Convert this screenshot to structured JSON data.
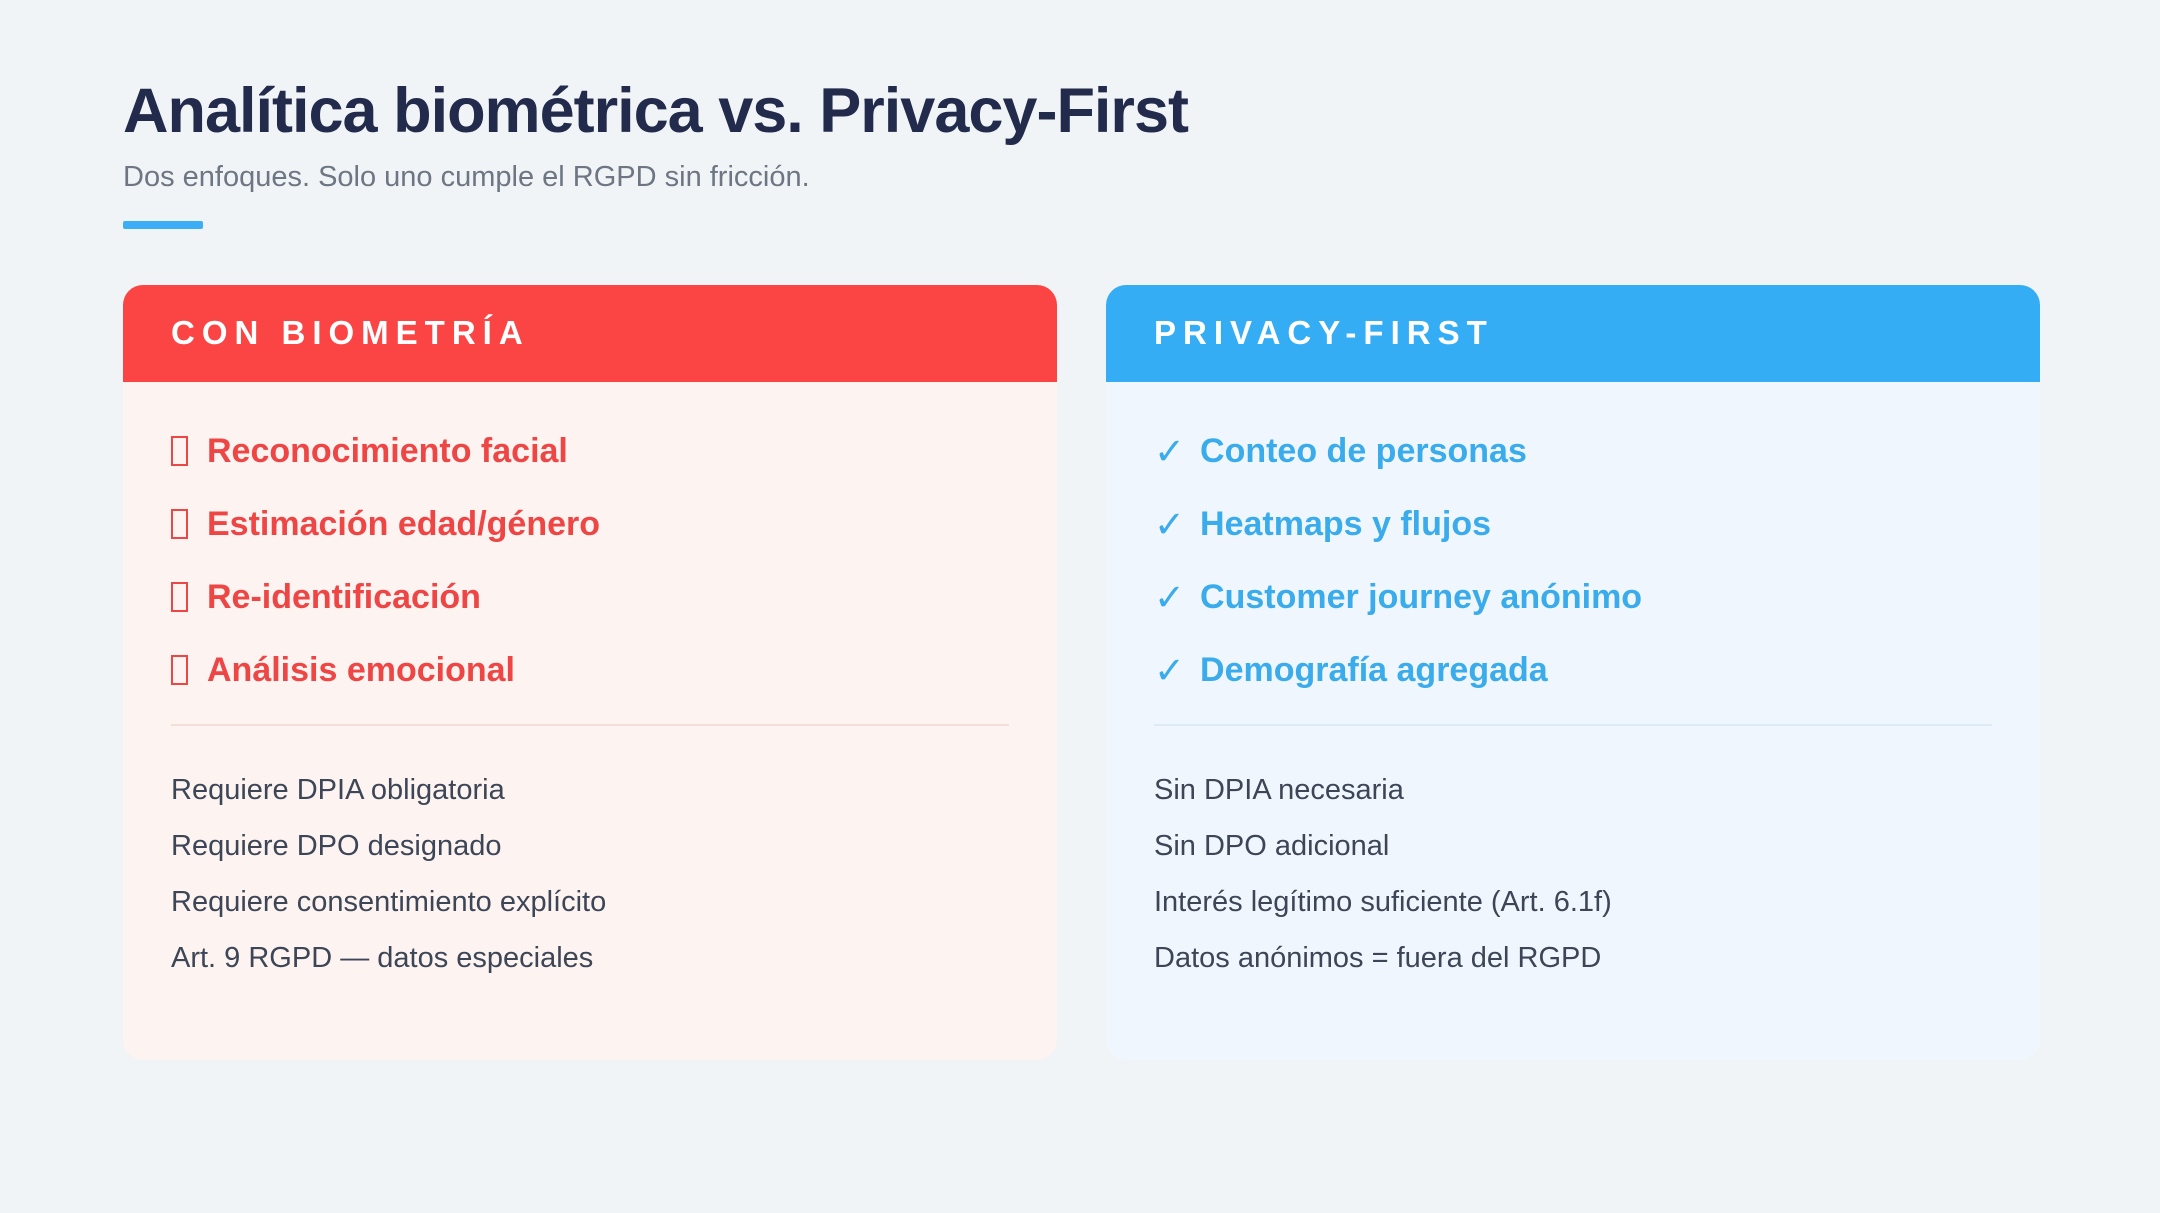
{
  "header": {
    "title": "Analítica biométrica vs. Privacy-First",
    "subtitle": "Dos enfoques. Solo uno cumple el RGPD sin fricción."
  },
  "colors": {
    "page_background": "#f1f4f6",
    "title_text": "#222b4b",
    "accent_bar": "#3baef5",
    "biometria_header": "#fb4444",
    "biometria_body": "#fdf3f0",
    "biometria_item_text": "#ee4545",
    "privacy_header": "#34adf5",
    "privacy_body": "#eff6fd",
    "privacy_item_text": "#3aabeb",
    "notes_text": "#3d4657"
  },
  "cards": [
    {
      "header": "CON BIOMETRÍA",
      "bullet_icon": "missing-glyph-box",
      "items": [
        "Reconocimiento facial",
        "Estimación edad/género",
        "Re-identificación",
        "Análisis emocional"
      ],
      "notes": [
        "Requiere DPIA obligatoria",
        "Requiere DPO designado",
        "Requiere consentimiento explícito",
        "Art. 9 RGPD — datos especiales"
      ]
    },
    {
      "header": "PRIVACY-FIRST",
      "bullet_icon": "check-mark",
      "check_glyph": "✓",
      "items": [
        "Conteo de personas",
        "Heatmaps y flujos",
        "Customer journey anónimo",
        "Demografía agregada"
      ],
      "notes": [
        "Sin DPIA necesaria",
        "Sin DPO adicional",
        "Interés legítimo suficiente (Art. 6.1f)",
        "Datos anónimos = fuera del RGPD"
      ]
    }
  ]
}
